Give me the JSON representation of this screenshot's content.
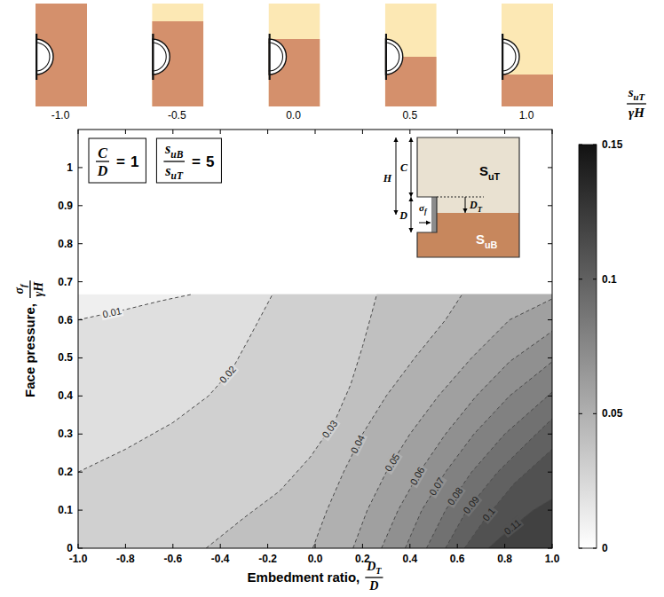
{
  "chart_data": {
    "type": "contour",
    "xlabel": {
      "text": "Embedment ratio,",
      "num": [
        [
          "D",
          "T"
        ]
      ],
      "den": [
        [
          "D",
          ""
        ]
      ]
    },
    "ylabel": {
      "text": "Face pressure,",
      "num": [
        [
          "σ",
          "f"
        ]
      ],
      "den": [
        [
          "γH",
          ""
        ]
      ]
    },
    "xlim": [
      -1,
      1
    ],
    "ylim": [
      0,
      1.1
    ],
    "xticks": [
      {
        "value": -1,
        "label": "-1.0"
      },
      {
        "value": -0.8,
        "label": "-0.8"
      },
      {
        "value": -0.6,
        "label": "-0.6"
      },
      {
        "value": -0.4,
        "label": "-0.4"
      },
      {
        "value": -0.2,
        "label": "-0.2"
      },
      {
        "value": 0,
        "label": "0.0"
      },
      {
        "value": 0.2,
        "label": "0.2"
      },
      {
        "value": 0.4,
        "label": "0.4"
      },
      {
        "value": 0.6,
        "label": "0.6"
      },
      {
        "value": 0.8,
        "label": "0.8"
      },
      {
        "value": 1,
        "label": "1.0"
      }
    ],
    "yticks": [
      0,
      0.1,
      0.2,
      0.3,
      0.4,
      0.5,
      0.6,
      0.7,
      0.8,
      0.9,
      1
    ],
    "domain": {
      "x": [
        -1,
        1
      ],
      "y": [
        0,
        0.667
      ]
    },
    "contours": [
      {
        "level": 0.01,
        "x": [
          -1,
          -0.8,
          -0.65,
          -0.52
        ],
        "y": [
          0.6,
          0.627,
          0.65,
          0.667
        ]
      },
      {
        "level": 0.02,
        "x": [
          -1,
          -0.8,
          -0.6,
          -0.45,
          -0.35,
          -0.28,
          -0.22,
          -0.18
        ],
        "y": [
          0.2,
          0.26,
          0.33,
          0.4,
          0.47,
          0.55,
          0.62,
          0.667
        ]
      },
      {
        "level": 0.03,
        "x": [
          -0.46,
          -0.3,
          -0.15,
          -0.02,
          0.08,
          0.15,
          0.2,
          0.24,
          0.26
        ],
        "y": [
          0,
          0.08,
          0.15,
          0.24,
          0.33,
          0.43,
          0.53,
          0.62,
          0.667
        ]
      },
      {
        "level": 0.04,
        "x": [
          -0.01,
          0.05,
          0.12,
          0.2,
          0.3,
          0.42,
          0.55,
          0.62
        ],
        "y": [
          0,
          0.1,
          0.2,
          0.3,
          0.4,
          0.5,
          0.6,
          0.667
        ]
      },
      {
        "level": 0.05,
        "x": [
          0.16,
          0.22,
          0.3,
          0.4,
          0.52,
          0.66,
          0.82,
          1
        ],
        "y": [
          0,
          0.1,
          0.2,
          0.3,
          0.4,
          0.5,
          0.6,
          0.655
        ]
      },
      {
        "level": 0.06,
        "x": [
          0.28,
          0.35,
          0.44,
          0.55,
          0.68,
          0.82,
          1
        ],
        "y": [
          0,
          0.1,
          0.2,
          0.3,
          0.4,
          0.49,
          0.57
        ]
      },
      {
        "level": 0.07,
        "x": [
          0.38,
          0.45,
          0.55,
          0.67,
          0.82,
          1
        ],
        "y": [
          0,
          0.1,
          0.2,
          0.3,
          0.4,
          0.49
        ]
      },
      {
        "level": 0.08,
        "x": [
          0.47,
          0.55,
          0.66,
          0.8,
          1
        ],
        "y": [
          0,
          0.1,
          0.2,
          0.3,
          0.41
        ]
      },
      {
        "level": 0.09,
        "x": [
          0.55,
          0.64,
          0.77,
          0.9,
          1
        ],
        "y": [
          0,
          0.1,
          0.2,
          0.28,
          0.34
        ]
      },
      {
        "level": 0.1,
        "x": [
          0.63,
          0.72,
          0.84,
          1
        ],
        "y": [
          0,
          0.08,
          0.17,
          0.26
        ]
      },
      {
        "level": 0.11,
        "x": [
          0.73,
          0.82,
          0.92,
          1
        ],
        "y": [
          0,
          0.05,
          0.1,
          0.13
        ]
      }
    ],
    "colorbar": {
      "title": {
        "num": [
          [
            "s",
            "uT"
          ]
        ],
        "den": [
          [
            "γH",
            ""
          ]
        ]
      },
      "range": [
        0,
        0.15
      ],
      "ticks": [
        0,
        0.05,
        0.1,
        0.15
      ]
    },
    "annotations": [
      {
        "num": [
          [
            "C",
            ""
          ]
        ],
        "den": [
          [
            "D",
            ""
          ]
        ],
        "relation": "=",
        "value": 1
      },
      {
        "num": [
          [
            "s",
            "uB"
          ]
        ],
        "den": [
          [
            "s",
            "uT"
          ]
        ],
        "relation": "=",
        "value": 5
      }
    ],
    "schematics": [
      {
        "value": -1,
        "label": "-1.0"
      },
      {
        "value": -0.5,
        "label": "-0.5"
      },
      {
        "value": 0,
        "label": "0.0"
      },
      {
        "value": 0.5,
        "label": "0.5"
      },
      {
        "value": 1,
        "label": "1.0"
      }
    ],
    "inset": {
      "cover": "C",
      "height": "H",
      "diameter": "D",
      "face_pressure": [
        [
          "σ",
          "f"
        ]
      ],
      "embedment": [
        [
          "D",
          "T"
        ]
      ],
      "top_soil": [
        [
          "S",
          "uT"
        ]
      ],
      "bottom_soil": [
        [
          "S",
          "uB"
        ]
      ]
    }
  }
}
